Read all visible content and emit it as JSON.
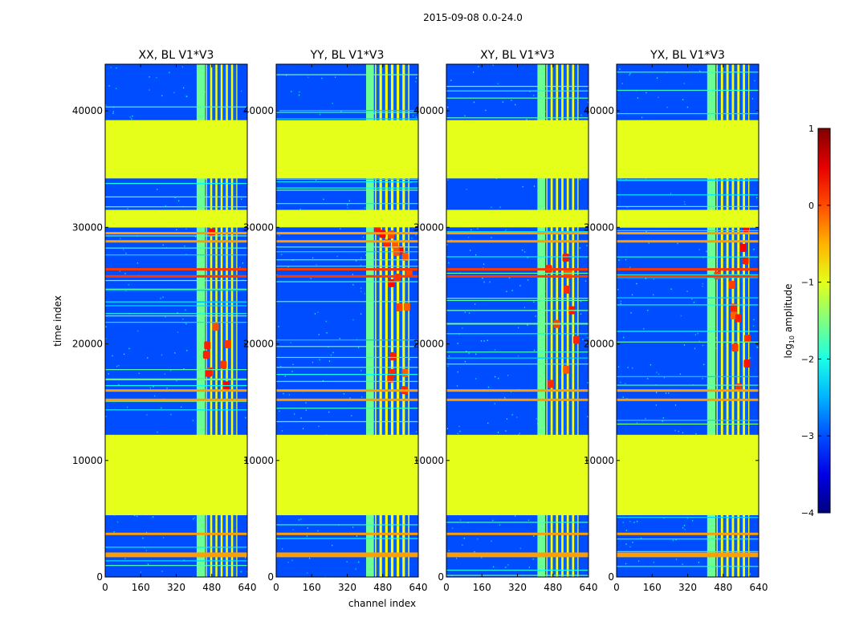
{
  "figure": {
    "suptitle": "2015-09-08 0.0-24.0"
  },
  "chart_data": {
    "type": "heatmap",
    "xlabel": "channel index",
    "ylabel": "time index",
    "xlim": [
      0,
      640
    ],
    "ylim": [
      0,
      44000
    ],
    "xticks": [
      0,
      160,
      320,
      480,
      640
    ],
    "yticks": [
      0,
      10000,
      20000,
      30000,
      40000
    ],
    "panels": [
      {
        "title": "XX, BL V1*V3",
        "band_a": [
          412,
          450
        ],
        "band_b": [
          454,
          595
        ],
        "hot": 0.5
      },
      {
        "title": "YY, BL V1*V3",
        "band_a": [
          405,
          440
        ],
        "band_b": [
          445,
          600
        ],
        "hot": 1.0
      },
      {
        "title": "XY, BL V1*V3",
        "band_a": [
          410,
          445
        ],
        "band_b": [
          450,
          595
        ],
        "hot": 0.55
      },
      {
        "title": "YX, BL V1*V3",
        "band_a": [
          408,
          445
        ],
        "band_b": [
          450,
          598
        ],
        "hot": 0.65
      }
    ],
    "flagged_time_ranges": [
      [
        5300,
        12200
      ],
      [
        34200,
        39200
      ],
      [
        30000,
        31500
      ]
    ],
    "bright_time_rows": [
      25800,
      26400,
      16000,
      15200,
      2000,
      1800,
      3700,
      29500,
      28800
    ],
    "colorbar": {
      "label": "log10 amplitude",
      "label_base": "log",
      "label_sub": "10",
      "label_rest": " amplitude",
      "range": [
        -4,
        1
      ],
      "ticks": [
        1,
        0,
        -1,
        -2,
        -3,
        -4
      ],
      "tick_labels": [
        "1",
        "0",
        "−1",
        "−2",
        "−3",
        "−4"
      ],
      "colormap": "jet"
    }
  }
}
